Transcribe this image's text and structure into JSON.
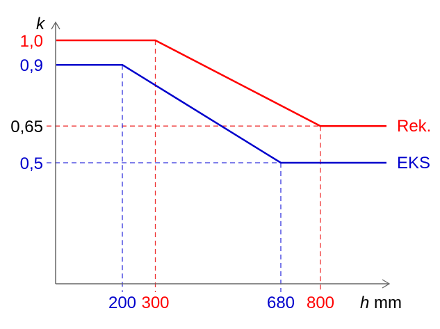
{
  "chart_data": {
    "type": "line",
    "title": "",
    "xlabel_var": "h",
    "xlabel_unit": "mm",
    "ylabel": "k",
    "xlim": [
      0,
      1000
    ],
    "ylim": [
      0,
      1.05
    ],
    "grid": false,
    "x_ticks": [
      {
        "value": 200,
        "label": "200",
        "color": "#0000cc"
      },
      {
        "value": 300,
        "label": "300",
        "color": "#ff0000"
      },
      {
        "value": 680,
        "label": "680",
        "color": "#0000cc"
      },
      {
        "value": 800,
        "label": "800",
        "color": "#ff0000"
      }
    ],
    "y_ticks": [
      {
        "value": 1.0,
        "label": "1,0",
        "color": "#ff0000"
      },
      {
        "value": 0.9,
        "label": "0,9",
        "color": "#0000cc"
      },
      {
        "value": 0.65,
        "label": "0,65",
        "color": "#000000"
      },
      {
        "value": 0.5,
        "label": "0,5",
        "color": "#0000cc"
      }
    ],
    "series": [
      {
        "name": "Rek.",
        "color": "#ff0000",
        "x": [
          0,
          300,
          800,
          1000
        ],
        "y": [
          1.0,
          1.0,
          0.65,
          0.65
        ]
      },
      {
        "name": "EKS",
        "color": "#0000cc",
        "x": [
          0,
          200,
          680,
          1000
        ],
        "y": [
          0.9,
          0.9,
          0.5,
          0.5
        ]
      }
    ],
    "legend_placement": "line ends, right"
  }
}
